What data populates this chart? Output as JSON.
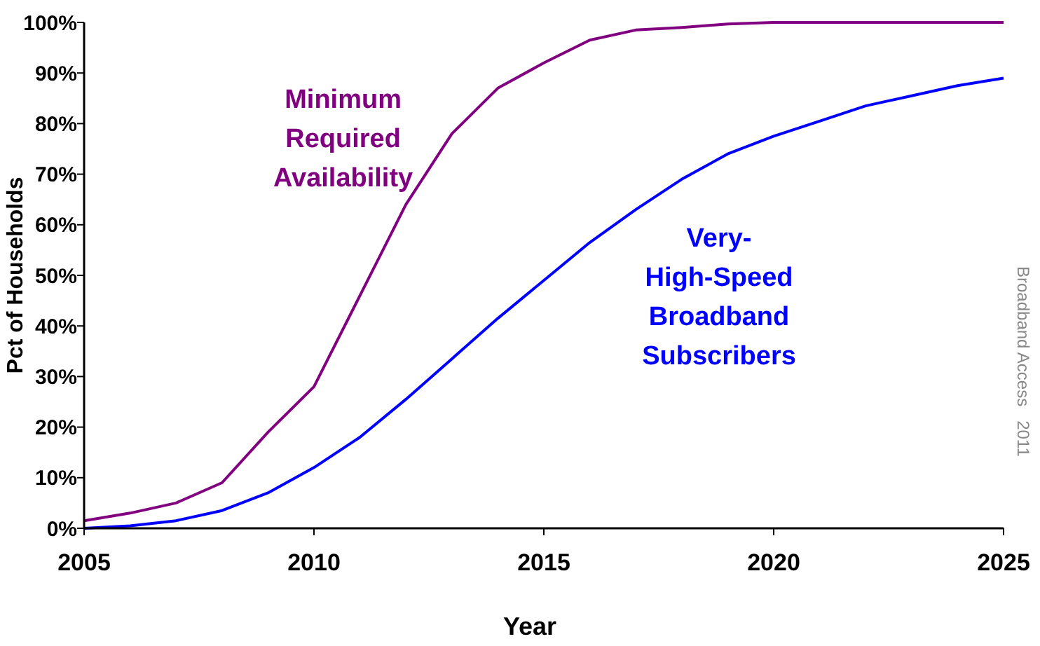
{
  "chart_data": {
    "type": "line",
    "xlabel": "Year",
    "ylabel": "Pct of Households",
    "x": [
      2005,
      2006,
      2007,
      2008,
      2009,
      2010,
      2011,
      2012,
      2013,
      2014,
      2015,
      2016,
      2017,
      2018,
      2019,
      2020,
      2021,
      2022,
      2023,
      2024,
      2025
    ],
    "series": [
      {
        "name": "Minimum\nRequired\nAvailability",
        "color": "#800080",
        "values": [
          1.5,
          3,
          5,
          9,
          19,
          28,
          46,
          64,
          78,
          87,
          92,
          96.5,
          98.5,
          99,
          99.7,
          100,
          100,
          100,
          100,
          100,
          100
        ]
      },
      {
        "name": "Very-\nHigh-Speed\nBroadband\nSubscribers",
        "color": "#0000ff",
        "values": [
          0,
          0.5,
          1.5,
          3.5,
          7,
          12,
          18,
          25.5,
          33.5,
          41.5,
          49,
          56.5,
          63,
          69,
          74,
          77.5,
          80.5,
          83.5,
          85.5,
          87.5,
          89
        ]
      }
    ],
    "xlim": [
      2005,
      2025
    ],
    "xticks": [
      2005,
      2010,
      2015,
      2020,
      2025
    ],
    "ylim": [
      0,
      100
    ],
    "yticks": [
      {
        "value": 0,
        "label": "0%"
      },
      {
        "value": 10,
        "label": "10%"
      },
      {
        "value": 20,
        "label": "20%"
      },
      {
        "value": 30,
        "label": "30%"
      },
      {
        "value": 40,
        "label": "40%"
      },
      {
        "value": 50,
        "label": "50%"
      },
      {
        "value": 60,
        "label": "60%"
      },
      {
        "value": 70,
        "label": "70%"
      },
      {
        "value": 80,
        "label": "80%"
      },
      {
        "value": 90,
        "label": "90%"
      },
      {
        "value": 100,
        "label": "100%"
      }
    ],
    "grid": false,
    "marker": "none",
    "line_style": "solid",
    "annotations": [
      "Broadband Access   2011"
    ]
  }
}
